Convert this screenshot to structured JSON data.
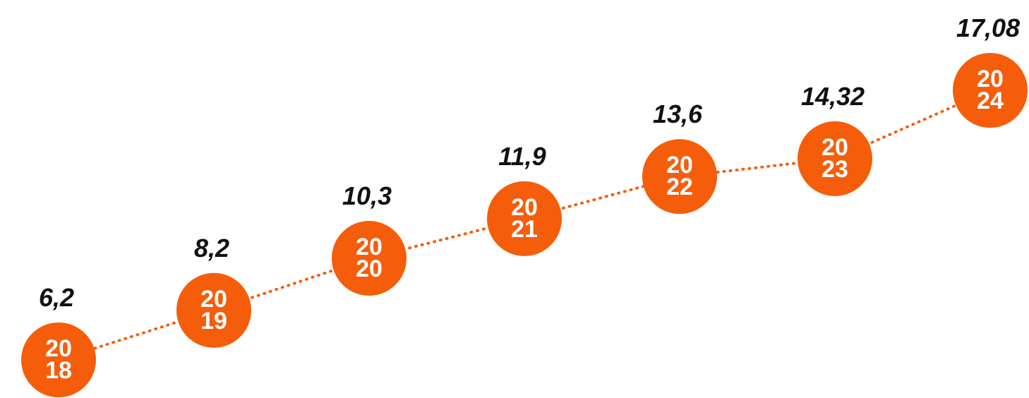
{
  "chart_data": {
    "type": "line",
    "categories": [
      "2018",
      "2019",
      "2020",
      "2021",
      "2022",
      "2023",
      "2024"
    ],
    "values": [
      6.2,
      8.2,
      10.3,
      11.9,
      13.6,
      14.32,
      17.08
    ],
    "value_labels": [
      "6,2",
      "8,2",
      "10,3",
      "11,9",
      "13,6",
      "14,32",
      "17,08"
    ],
    "color": "#f55d0a"
  }
}
